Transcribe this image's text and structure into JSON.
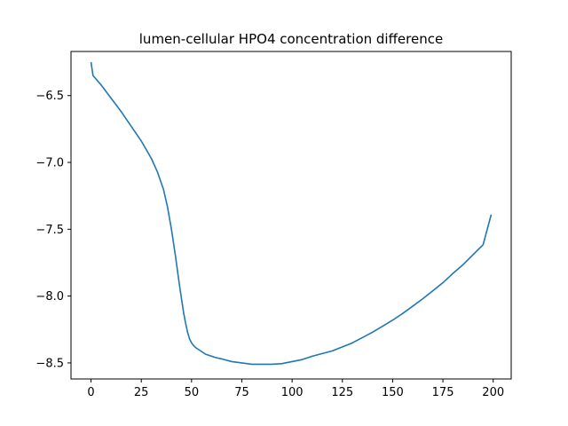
{
  "chart_data": {
    "type": "line",
    "title": "lumen-cellular HPO4 concentration difference",
    "xlabel": "",
    "ylabel": "",
    "xlim": [
      -9.95,
      208.95
    ],
    "ylim": [
      -8.62,
      -6.17
    ],
    "grid": false,
    "legend": "none",
    "x_ticks": [
      0,
      25,
      50,
      75,
      100,
      125,
      150,
      175,
      200
    ],
    "x_tick_labels": [
      "0",
      "25",
      "50",
      "75",
      "100",
      "125",
      "150",
      "175",
      "200"
    ],
    "y_ticks": [
      -6.5,
      -7.0,
      -7.5,
      -8.0,
      -8.5
    ],
    "y_tick_labels": [
      "−6.5",
      "−7.0",
      "−7.5",
      "−8.0",
      "−8.5"
    ],
    "series": [
      {
        "color": "#1f77b4",
        "x": [
          0,
          1,
          5,
          10,
          15,
          20,
          25,
          30,
          33,
          36,
          38,
          40,
          42,
          44,
          46,
          47,
          48,
          49,
          50,
          51,
          52,
          53,
          54,
          55,
          56,
          57,
          58,
          60,
          62,
          65,
          70,
          75,
          80,
          85,
          90,
          95,
          100,
          105,
          110,
          115,
          120,
          125,
          130,
          135,
          140,
          145,
          150,
          155,
          160,
          165,
          170,
          175,
          180,
          185,
          190,
          195,
          199
        ],
        "y": [
          -6.25,
          -6.35,
          -6.42,
          -6.52,
          -6.62,
          -6.73,
          -6.84,
          -6.97,
          -7.07,
          -7.2,
          -7.33,
          -7.5,
          -7.7,
          -7.92,
          -8.12,
          -8.2,
          -8.27,
          -8.32,
          -8.35,
          -8.37,
          -8.385,
          -8.395,
          -8.405,
          -8.415,
          -8.425,
          -8.435,
          -8.44,
          -8.45,
          -8.46,
          -8.47,
          -8.49,
          -8.5,
          -8.51,
          -8.51,
          -8.51,
          -8.505,
          -8.49,
          -8.475,
          -8.45,
          -8.43,
          -8.41,
          -8.38,
          -8.35,
          -8.31,
          -8.27,
          -8.225,
          -8.18,
          -8.13,
          -8.075,
          -8.02,
          -7.96,
          -7.9,
          -7.83,
          -7.765,
          -7.69,
          -7.615,
          -7.39
        ]
      }
    ]
  }
}
